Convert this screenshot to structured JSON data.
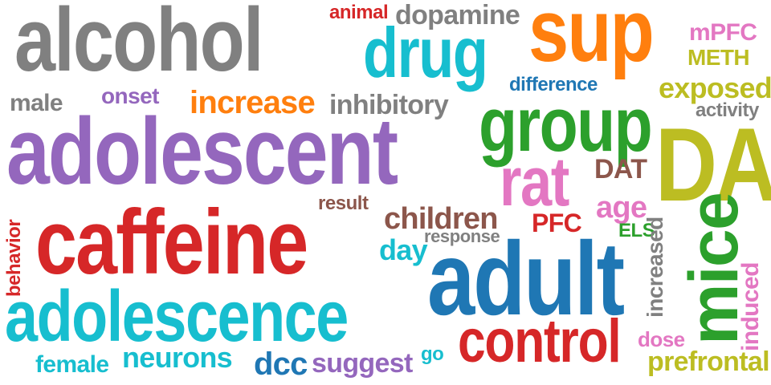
{
  "palette": {
    "gray": "#808080",
    "teal": "#17becf",
    "orange": "#ff7f0e",
    "purple": "#9467bd",
    "red": "#d62728",
    "green": "#2ca02c",
    "pink": "#e377c2",
    "olive": "#bcbd22",
    "blue": "#1f77b4",
    "brown": "#8c564b"
  },
  "words": [
    {
      "id": "alcohol",
      "text": "alcohol",
      "color": "#808080"
    },
    {
      "id": "animal",
      "text": "animal",
      "color": "#d62728"
    },
    {
      "id": "dopamine",
      "text": "dopamine",
      "color": "#808080"
    },
    {
      "id": "sup",
      "text": "sup",
      "color": "#ff7f0e"
    },
    {
      "id": "mpfc",
      "text": "mPFC",
      "color": "#e377c2"
    },
    {
      "id": "meth",
      "text": "METH",
      "color": "#bcbd22"
    },
    {
      "id": "drug",
      "text": "drug",
      "color": "#17becf"
    },
    {
      "id": "difference",
      "text": "difference",
      "color": "#1f77b4"
    },
    {
      "id": "exposed",
      "text": "exposed",
      "color": "#bcbd22"
    },
    {
      "id": "male",
      "text": "male",
      "color": "#808080"
    },
    {
      "id": "onset",
      "text": "onset",
      "color": "#9467bd"
    },
    {
      "id": "increase",
      "text": "increase",
      "color": "#ff7f0e"
    },
    {
      "id": "inhibitory",
      "text": "inhibitory",
      "color": "#808080"
    },
    {
      "id": "activity",
      "text": "activity",
      "color": "#808080"
    },
    {
      "id": "group",
      "text": "group",
      "color": "#2ca02c"
    },
    {
      "id": "adolescent",
      "text": "adolescent",
      "color": "#9467bd"
    },
    {
      "id": "da",
      "text": "DA",
      "color": "#bcbd22"
    },
    {
      "id": "rat",
      "text": "rat",
      "color": "#e377c2"
    },
    {
      "id": "dat",
      "text": "DAT",
      "color": "#8c564b"
    },
    {
      "id": "age",
      "text": "age",
      "color": "#e377c2"
    },
    {
      "id": "result",
      "text": "result",
      "color": "#8c564b"
    },
    {
      "id": "children",
      "text": "children",
      "color": "#8c564b"
    },
    {
      "id": "pfc",
      "text": "PFC",
      "color": "#d62728"
    },
    {
      "id": "els",
      "text": "ELS",
      "color": "#2ca02c"
    },
    {
      "id": "response",
      "text": "response",
      "color": "#808080"
    },
    {
      "id": "caffeine",
      "text": "caffeine",
      "color": "#d62728"
    },
    {
      "id": "behavior",
      "text": "behavior",
      "color": "#d62728"
    },
    {
      "id": "day",
      "text": "day",
      "color": "#17becf"
    },
    {
      "id": "increased",
      "text": "increased",
      "color": "#808080"
    },
    {
      "id": "mice",
      "text": "mice",
      "color": "#2ca02c"
    },
    {
      "id": "induced",
      "text": "induced",
      "color": "#e377c2"
    },
    {
      "id": "adult",
      "text": "adult",
      "color": "#1f77b4"
    },
    {
      "id": "adolescence",
      "text": "adolescence",
      "color": "#17becf"
    },
    {
      "id": "control",
      "text": "control",
      "color": "#d62728"
    },
    {
      "id": "dose",
      "text": "dose",
      "color": "#e377c2"
    },
    {
      "id": "female",
      "text": "female",
      "color": "#17becf"
    },
    {
      "id": "neurons",
      "text": "neurons",
      "color": "#17becf"
    },
    {
      "id": "dcc",
      "text": "dcc",
      "color": "#1f77b4"
    },
    {
      "id": "suggest",
      "text": "suggest",
      "color": "#9467bd"
    },
    {
      "id": "go",
      "text": "go",
      "color": "#17becf"
    },
    {
      "id": "prefrontal",
      "text": "prefrontal",
      "color": "#bcbd22"
    }
  ]
}
